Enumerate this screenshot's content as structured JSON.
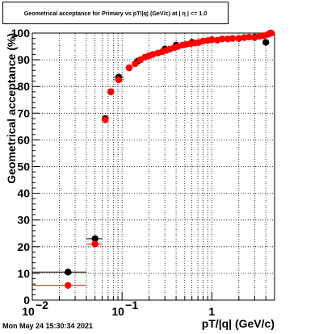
{
  "title": "Geometrical acceptance for Primary vs pT/|q| (GeV/c) at | η | <= 1.0",
  "footer": "Mon May 24 15:30:34 2021",
  "chart_data": {
    "type": "scatter",
    "title": "Geometrical acceptance for Primary vs pT/|q| (GeV/c) at | η | <= 1.0",
    "xlabel": "pT/|q| (GeV/c)",
    "ylabel": "Geometrical acceptance (%)",
    "x_scale": "log",
    "xlim": [
      0.01,
      5
    ],
    "ylim": [
      0,
      100
    ],
    "grid": true,
    "x_ticks": [
      {
        "value": 0.01,
        "base": "10",
        "exp": "−2"
      },
      {
        "value": 0.1,
        "base": "10",
        "exp": "−1"
      },
      {
        "value": 1,
        "base": "1",
        "exp": ""
      }
    ],
    "y_ticks": [
      "0",
      "10",
      "20",
      "30",
      "40",
      "50",
      "60",
      "70",
      "80",
      "90",
      "100"
    ],
    "series": [
      {
        "color": "#000000",
        "points": [
          {
            "x": 0.025,
            "y": 10.5,
            "xlo": 0.01,
            "xhi": 0.04
          },
          {
            "x": 0.05,
            "y": 23.0,
            "xlo": 0.04,
            "xhi": 0.06
          },
          {
            "x": 0.065,
            "y": 68.0
          },
          {
            "x": 0.075,
            "y": 78.0
          },
          {
            "x": 0.092,
            "y": 83.5,
            "xlo": 0.08,
            "xhi": 0.105
          },
          {
            "x": 0.12,
            "y": 87.0
          },
          {
            "x": 0.15,
            "y": 89.5
          },
          {
            "x": 0.2,
            "y": 91.5
          },
          {
            "x": 0.3,
            "y": 94.0
          },
          {
            "x": 0.4,
            "y": 95.5
          },
          {
            "x": 0.6,
            "y": 96.5
          },
          {
            "x": 1.0,
            "y": 97.5
          },
          {
            "x": 2.0,
            "y": 98.0
          },
          {
            "x": 3.0,
            "y": 98.5
          },
          {
            "x": 4.0,
            "y": 96.5
          },
          {
            "x": 4.5,
            "y": 100.0
          }
        ]
      },
      {
        "color": "#ff0000",
        "points": [
          {
            "x": 0.025,
            "y": 5.5,
            "xlo": 0.01,
            "xhi": 0.04
          },
          {
            "x": 0.05,
            "y": 21.0,
            "xlo": 0.04,
            "xhi": 0.06
          },
          {
            "x": 0.065,
            "y": 67.5
          },
          {
            "x": 0.075,
            "y": 78.0
          },
          {
            "x": 0.092,
            "y": 82.5,
            "xlo": 0.08,
            "xhi": 0.105
          },
          {
            "x": 0.12,
            "y": 87.0
          },
          {
            "x": 0.14,
            "y": 88.5
          },
          {
            "x": 0.16,
            "y": 90.0
          },
          {
            "x": 0.18,
            "y": 91.0
          },
          {
            "x": 0.2,
            "y": 91.5
          },
          {
            "x": 0.22,
            "y": 92.0
          },
          {
            "x": 0.25,
            "y": 92.5
          },
          {
            "x": 0.28,
            "y": 93.0
          },
          {
            "x": 0.31,
            "y": 93.5
          },
          {
            "x": 0.34,
            "y": 94.0
          },
          {
            "x": 0.38,
            "y": 94.5
          },
          {
            "x": 0.42,
            "y": 95.0
          },
          {
            "x": 0.47,
            "y": 95.5
          },
          {
            "x": 0.52,
            "y": 95.8
          },
          {
            "x": 0.58,
            "y": 96.0
          },
          {
            "x": 0.65,
            "y": 96.3
          },
          {
            "x": 0.72,
            "y": 96.5
          },
          {
            "x": 0.8,
            "y": 97.0
          },
          {
            "x": 0.9,
            "y": 97.2
          },
          {
            "x": 1.0,
            "y": 97.5
          },
          {
            "x": 1.15,
            "y": 97.3
          },
          {
            "x": 1.3,
            "y": 97.8
          },
          {
            "x": 1.5,
            "y": 97.8
          },
          {
            "x": 1.7,
            "y": 98.0
          },
          {
            "x": 2.0,
            "y": 98.0
          },
          {
            "x": 2.3,
            "y": 98.3
          },
          {
            "x": 2.6,
            "y": 98.5
          },
          {
            "x": 3.0,
            "y": 98.3
          },
          {
            "x": 3.4,
            "y": 98.8
          },
          {
            "x": 3.8,
            "y": 99.0
          },
          {
            "x": 4.2,
            "y": 99.5
          },
          {
            "x": 4.6,
            "y": 100.0
          }
        ]
      }
    ]
  }
}
